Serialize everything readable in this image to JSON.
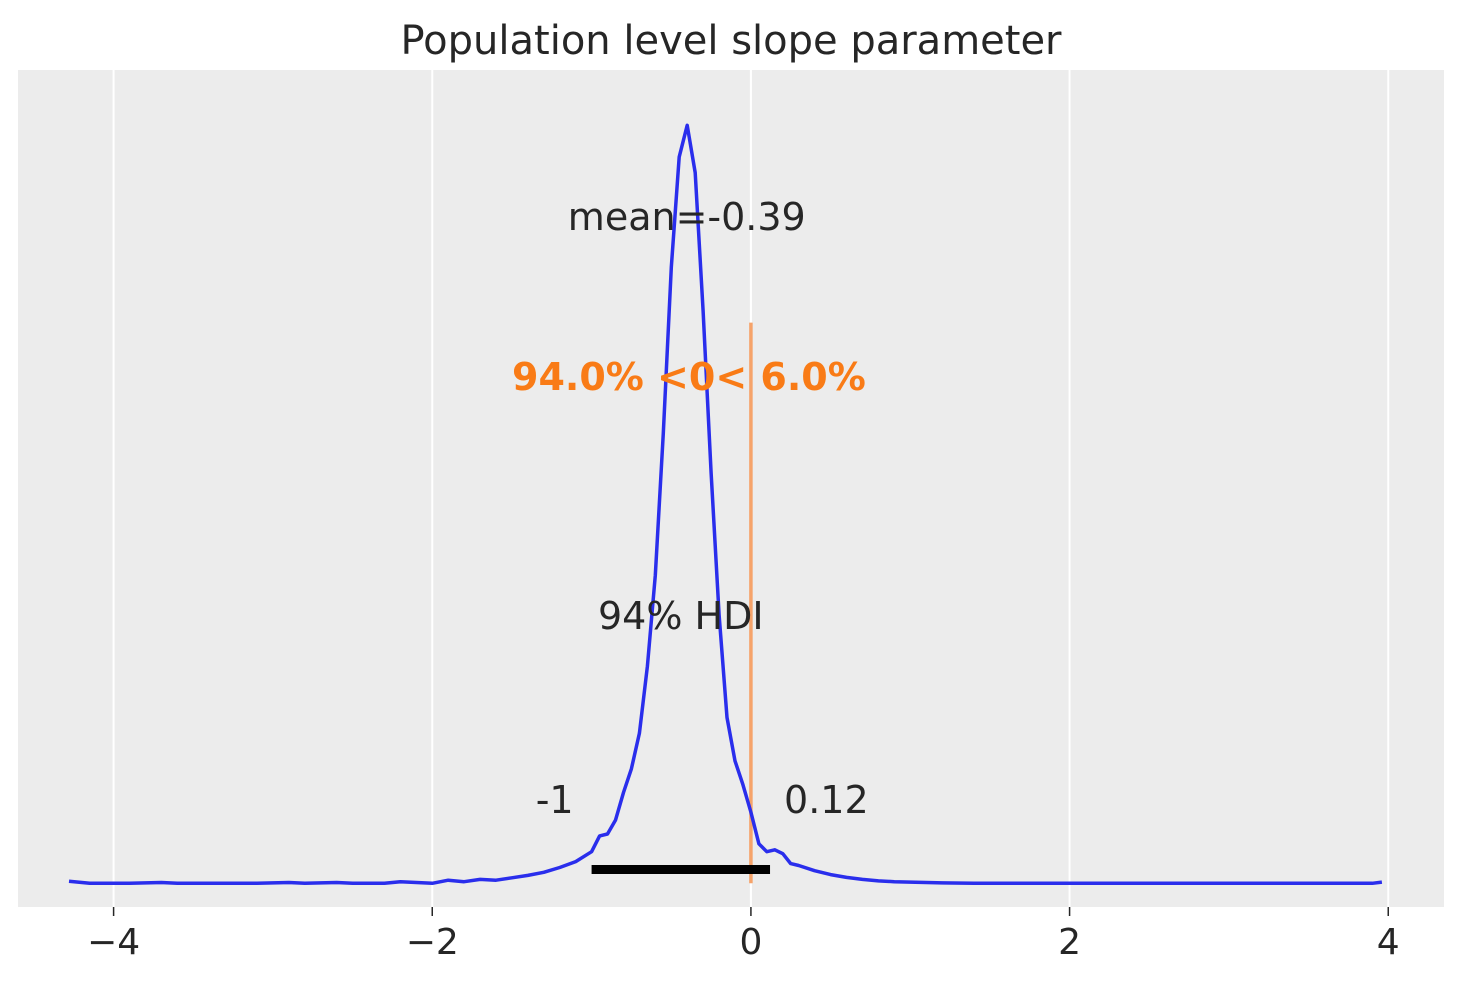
{
  "chart_data": {
    "type": "line",
    "title": "Population level slope parameter",
    "xlabel": "",
    "ylabel": "",
    "xlim": [
      -4.6,
      4.35
    ],
    "ylim": [
      -0.06,
      2.06
    ],
    "xticks": [
      -4,
      -2,
      0,
      2,
      4
    ],
    "xtick_labels": [
      "−4",
      "−2",
      "0",
      "2",
      "4"
    ],
    "grid": true,
    "background": "#ececec",
    "series": [
      {
        "color": "#2a2eec",
        "x": [
          -4.28,
          -4.15,
          -3.9,
          -3.7,
          -3.6,
          -3.4,
          -3.1,
          -2.9,
          -2.8,
          -2.6,
          -2.5,
          -2.3,
          -2.2,
          -2.0,
          -1.9,
          -1.8,
          -1.7,
          -1.6,
          -1.5,
          -1.4,
          -1.3,
          -1.2,
          -1.1,
          -1.0,
          -0.95,
          -0.9,
          -0.85,
          -0.8,
          -0.75,
          -0.7,
          -0.65,
          -0.6,
          -0.55,
          -0.5,
          -0.45,
          -0.4,
          -0.35,
          -0.3,
          -0.25,
          -0.2,
          -0.15,
          -0.1,
          -0.05,
          0.0,
          0.05,
          0.1,
          0.15,
          0.2,
          0.25,
          0.3,
          0.4,
          0.5,
          0.6,
          0.7,
          0.8,
          0.9,
          1.0,
          1.1,
          1.2,
          1.4,
          1.6,
          1.8,
          2.0,
          2.5,
          3.0,
          3.5,
          3.9,
          3.96
        ],
        "y": [
          0.005,
          0.0,
          0.0,
          0.002,
          0.0,
          0.0,
          0.0,
          0.002,
          0.0,
          0.002,
          0.0,
          0.0,
          0.004,
          0.0,
          0.008,
          0.004,
          0.01,
          0.008,
          0.014,
          0.02,
          0.028,
          0.04,
          0.055,
          0.08,
          0.12,
          0.125,
          0.16,
          0.23,
          0.29,
          0.38,
          0.55,
          0.78,
          1.14,
          1.56,
          1.84,
          1.92,
          1.8,
          1.45,
          1.04,
          0.68,
          0.42,
          0.31,
          0.25,
          0.18,
          0.1,
          0.08,
          0.085,
          0.075,
          0.05,
          0.045,
          0.032,
          0.022,
          0.015,
          0.01,
          0.006,
          0.004,
          0.003,
          0.002,
          0.001,
          0.0,
          0.0,
          0.0,
          0.0,
          0.0,
          0.0,
          0.0,
          0.0,
          0.003
        ]
      }
    ],
    "hdi": {
      "low": -1.0,
      "high": 0.12,
      "low_label": "-1",
      "high_label": "0.12",
      "label": "94% HDI",
      "color": "#000000",
      "y": 0.035
    },
    "mean_label": "mean=-0.39",
    "reference": {
      "value": 0.0,
      "label": "94.0% <0< 6.0%",
      "color": "#f97b16",
      "line_color": "#f6a36a",
      "y_top": 1.42
    }
  }
}
